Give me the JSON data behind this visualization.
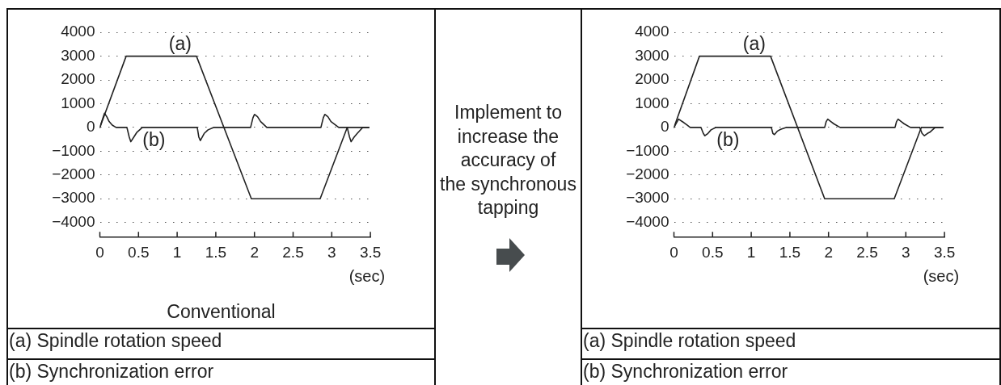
{
  "chart_data": [
    {
      "type": "line",
      "title": "Conventional",
      "xlabel": "(sec)",
      "series": [
        {
          "name": "(a)",
          "color": "#222222",
          "x": [
            0,
            0.34,
            1.25,
            1.96,
            2.85,
            3.2,
            3.48
          ],
          "values": [
            0,
            3000,
            3000,
            -3000,
            -3000,
            0,
            0
          ]
        },
        {
          "name": "(b)",
          "color": "#222222",
          "x": [
            0,
            0.06,
            0.09,
            0.12,
            0.16,
            0.21,
            0.35,
            0.38,
            0.4,
            0.44,
            0.48,
            0.55,
            1.26,
            1.28,
            1.3,
            1.35,
            1.4,
            1.47,
            1.95,
            1.98,
            2,
            2.04,
            2.08,
            2.16,
            2.86,
            2.89,
            2.91,
            2.95,
            2.99,
            3.09,
            3.2,
            3.23,
            3.25,
            3.29,
            3.33,
            3.4,
            3.48
          ],
          "values": [
            0,
            600,
            450,
            250,
            100,
            0,
            0,
            -400,
            -600,
            -400,
            -200,
            0,
            0,
            -400,
            -550,
            -250,
            -100,
            0,
            0,
            400,
            550,
            450,
            250,
            0,
            0,
            400,
            550,
            450,
            250,
            0,
            0,
            -400,
            -600,
            -400,
            -250,
            0,
            0
          ]
        }
      ],
      "xlim": [
        0,
        3.5
      ],
      "xticks": [
        0,
        0.5,
        1,
        1.5,
        2,
        2.5,
        3,
        3.5
      ],
      "ylim": [
        -4600,
        4000
      ],
      "yticks": [
        {
          "value": -4000,
          "label": "−4000"
        },
        {
          "value": -3000,
          "label": "−3000"
        },
        {
          "value": -2000,
          "label": "−2000"
        },
        {
          "value": -1000,
          "label": "−1000"
        },
        0,
        1000,
        2000,
        3000,
        4000
      ],
      "grid": "y",
      "annotations": [
        "(a) Spindle rotation speed",
        "(b) Synchronization error"
      ]
    },
    {
      "type": "other",
      "annotations": [
        "Implement to\nincrease the\naccuracy of\nthe synchronous\ntapping"
      ]
    },
    {
      "type": "line",
      "xlabel": "(sec)",
      "series": [
        {
          "name": "(a)",
          "color": "#222222",
          "x": [
            0,
            0.33,
            1.25,
            1.95,
            2.85,
            3.2,
            3.48
          ],
          "values": [
            0,
            3000,
            3000,
            -3000,
            -3000,
            0,
            0
          ]
        },
        {
          "name": "(b)",
          "color": "#222222",
          "x": [
            0,
            0.06,
            0.13,
            0.17,
            0.21,
            0.35,
            0.38,
            0.4,
            0.44,
            0.48,
            0.54,
            1.26,
            1.28,
            1.3,
            1.34,
            1.38,
            1.45,
            1.95,
            1.97,
            1.99,
            2.03,
            2.07,
            2.15,
            2.86,
            2.88,
            2.9,
            2.94,
            2.98,
            3.06,
            3.18,
            3.21,
            3.24,
            3.28,
            3.31,
            3.38,
            3.48
          ],
          "values": [
            0,
            350,
            200,
            100,
            0,
            0,
            -250,
            -350,
            -250,
            -100,
            0,
            0,
            -250,
            -300,
            -150,
            -80,
            0,
            0,
            250,
            350,
            250,
            150,
            0,
            0,
            250,
            350,
            250,
            150,
            0,
            0,
            -250,
            -350,
            -250,
            -200,
            0,
            0
          ]
        }
      ],
      "xlim": [
        0,
        3.5
      ],
      "xticks": [
        0,
        0.5,
        1,
        1.5,
        2,
        2.5,
        3,
        3.5
      ],
      "ylim": [
        -4600,
        4000
      ],
      "yticks": [
        {
          "value": -4000,
          "label": "−4000"
        },
        {
          "value": -3000,
          "label": "−3000"
        },
        {
          "value": -2000,
          "label": "−2000"
        },
        {
          "value": -1000,
          "label": "−1000"
        },
        0,
        1000,
        2000,
        3000,
        4000
      ],
      "grid": "y",
      "annotations": [
        "(a) Spindle rotation speed",
        "(b) Synchronization error"
      ]
    }
  ]
}
